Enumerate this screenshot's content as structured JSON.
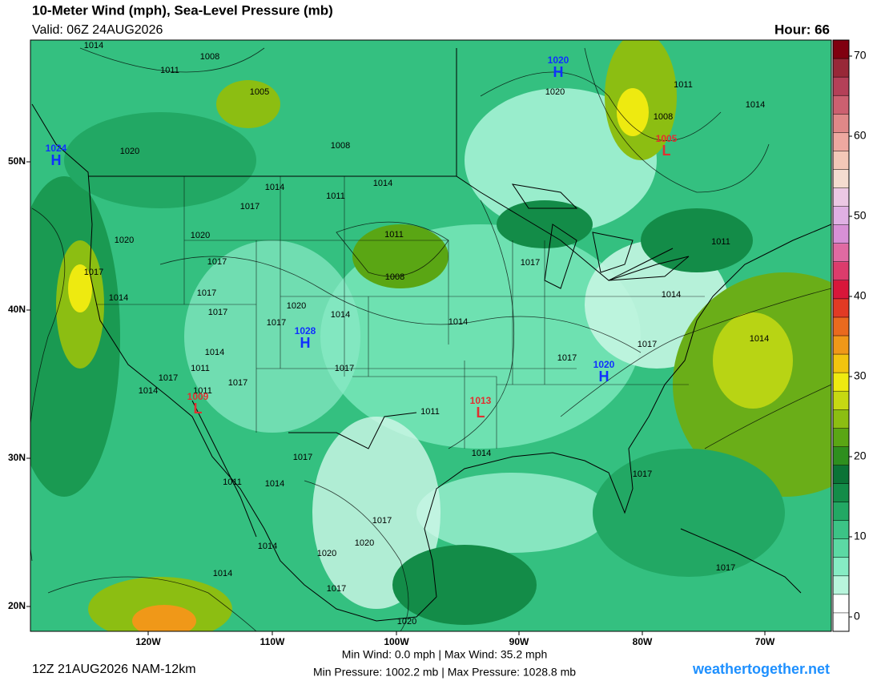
{
  "header": {
    "title": "10-Meter Wind (mph), Sea-Level Pressure (mb)",
    "valid": "Valid: 06Z 24AUG2026",
    "hour": "Hour: 66"
  },
  "map": {
    "lat_labels": [
      "50N",
      "40N",
      "30N",
      "20N"
    ],
    "lon_labels": [
      "120W",
      "110W",
      "100W",
      "90W",
      "80W",
      "70W"
    ],
    "high_color": "#1030ff",
    "low_color": "#e03030",
    "pressure_centers": [
      {
        "kind": "H",
        "value": "1020"
      },
      {
        "kind": "H",
        "value": "1024"
      },
      {
        "kind": "H",
        "value": "1028"
      },
      {
        "kind": "H",
        "value": "1020"
      },
      {
        "kind": "L",
        "value": "1005"
      },
      {
        "kind": "L",
        "value": "1009"
      },
      {
        "kind": "L",
        "value": "1013"
      }
    ],
    "isobar_labels": [
      "1014",
      "1008",
      "1011",
      "1005",
      "1020",
      "1008",
      "1014",
      "1017",
      "1011",
      "1014",
      "1020",
      "1011",
      "1014",
      "1008",
      "1020",
      "1020",
      "1017",
      "1011",
      "1008",
      "1017",
      "1011",
      "1017",
      "1014",
      "1017",
      "1017",
      "1020",
      "1017",
      "1014",
      "1014",
      "1014",
      "1014",
      "1017",
      "1017",
      "1014",
      "1011",
      "1017",
      "1017",
      "1017",
      "1014",
      "1011",
      "1011",
      "1014",
      "1017",
      "1017",
      "1014",
      "1011",
      "1017",
      "1020",
      "1014",
      "1020",
      "1014",
      "1017",
      "1017",
      "1020"
    ]
  },
  "colorbar": {
    "ticks": [
      70,
      60,
      50,
      40,
      30,
      20,
      10,
      0
    ],
    "colors": [
      "#ffffff",
      "#ffffff",
      "#b8f5dc",
      "#86ecc4",
      "#5cd9a4",
      "#3cc386",
      "#22a864",
      "#138c48",
      "#0b7336",
      "#2e8f1e",
      "#5aa614",
      "#8cbe12",
      "#c6d812",
      "#eeea10",
      "#f2c40e",
      "#f09818",
      "#ea6a1e",
      "#e23a24",
      "#d8163a",
      "#dc3c6c",
      "#e06aa2",
      "#d890d6",
      "#e0b0e4",
      "#ecc8e4",
      "#f4dcd0",
      "#f4c8b8",
      "#eea8a0",
      "#e08888",
      "#cc6070",
      "#b44058",
      "#982838",
      "#800010"
    ]
  },
  "footer": {
    "run": "12Z 21AUG2026 NAM-12km",
    "wind": "Min Wind:  0.0 mph | Max Wind: 35.2 mph",
    "pressure": "Min Pressure: 1002.2 mb | Max Pressure: 1028.8 mb",
    "site": "weathertogether.net"
  }
}
